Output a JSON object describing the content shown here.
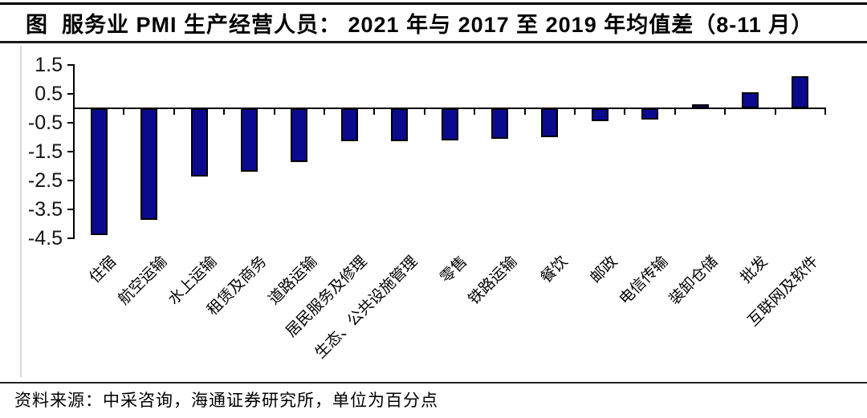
{
  "title": "图  服务业 PMI 生产经营人员： 2021 年与 2017 至 2019 年均值差（8-11 月）",
  "footer": "资料来源：中采咨询，海通证券研究所，单位为百分点",
  "chart_data": {
    "type": "bar",
    "title": "服务业 PMI 生产经营人员：2021 年与 2017 至 2019 年均值差（8-11 月）",
    "categories": [
      "住宿",
      "航空运输",
      "水上运输",
      "租赁及商务",
      "道路运输",
      "居民服务及修理",
      "生态、公共设施管理",
      "零售",
      "铁路运输",
      "餐饮",
      "邮政",
      "电信传输",
      "装卸仓储",
      "批发",
      "互联网及软件"
    ],
    "values": [
      -4.4,
      -3.85,
      -2.35,
      -2.2,
      -1.85,
      -1.15,
      -1.15,
      -1.1,
      -1.05,
      -1.0,
      -0.45,
      -0.4,
      0.15,
      0.55,
      1.1
    ],
    "xlabel": "",
    "ylabel": "",
    "ylim": [
      -4.5,
      1.5
    ],
    "ytick_labels": [
      "1.5",
      "0.5",
      "-0.5",
      "-1.5",
      "-2.5",
      "-3.5",
      "-4.5"
    ],
    "grid": "off",
    "legend": "none",
    "bar_color": "#0a0a8e",
    "bar_border_color": "#000000",
    "unit": "百分点",
    "source": "中采咨询，海通证券研究所"
  }
}
